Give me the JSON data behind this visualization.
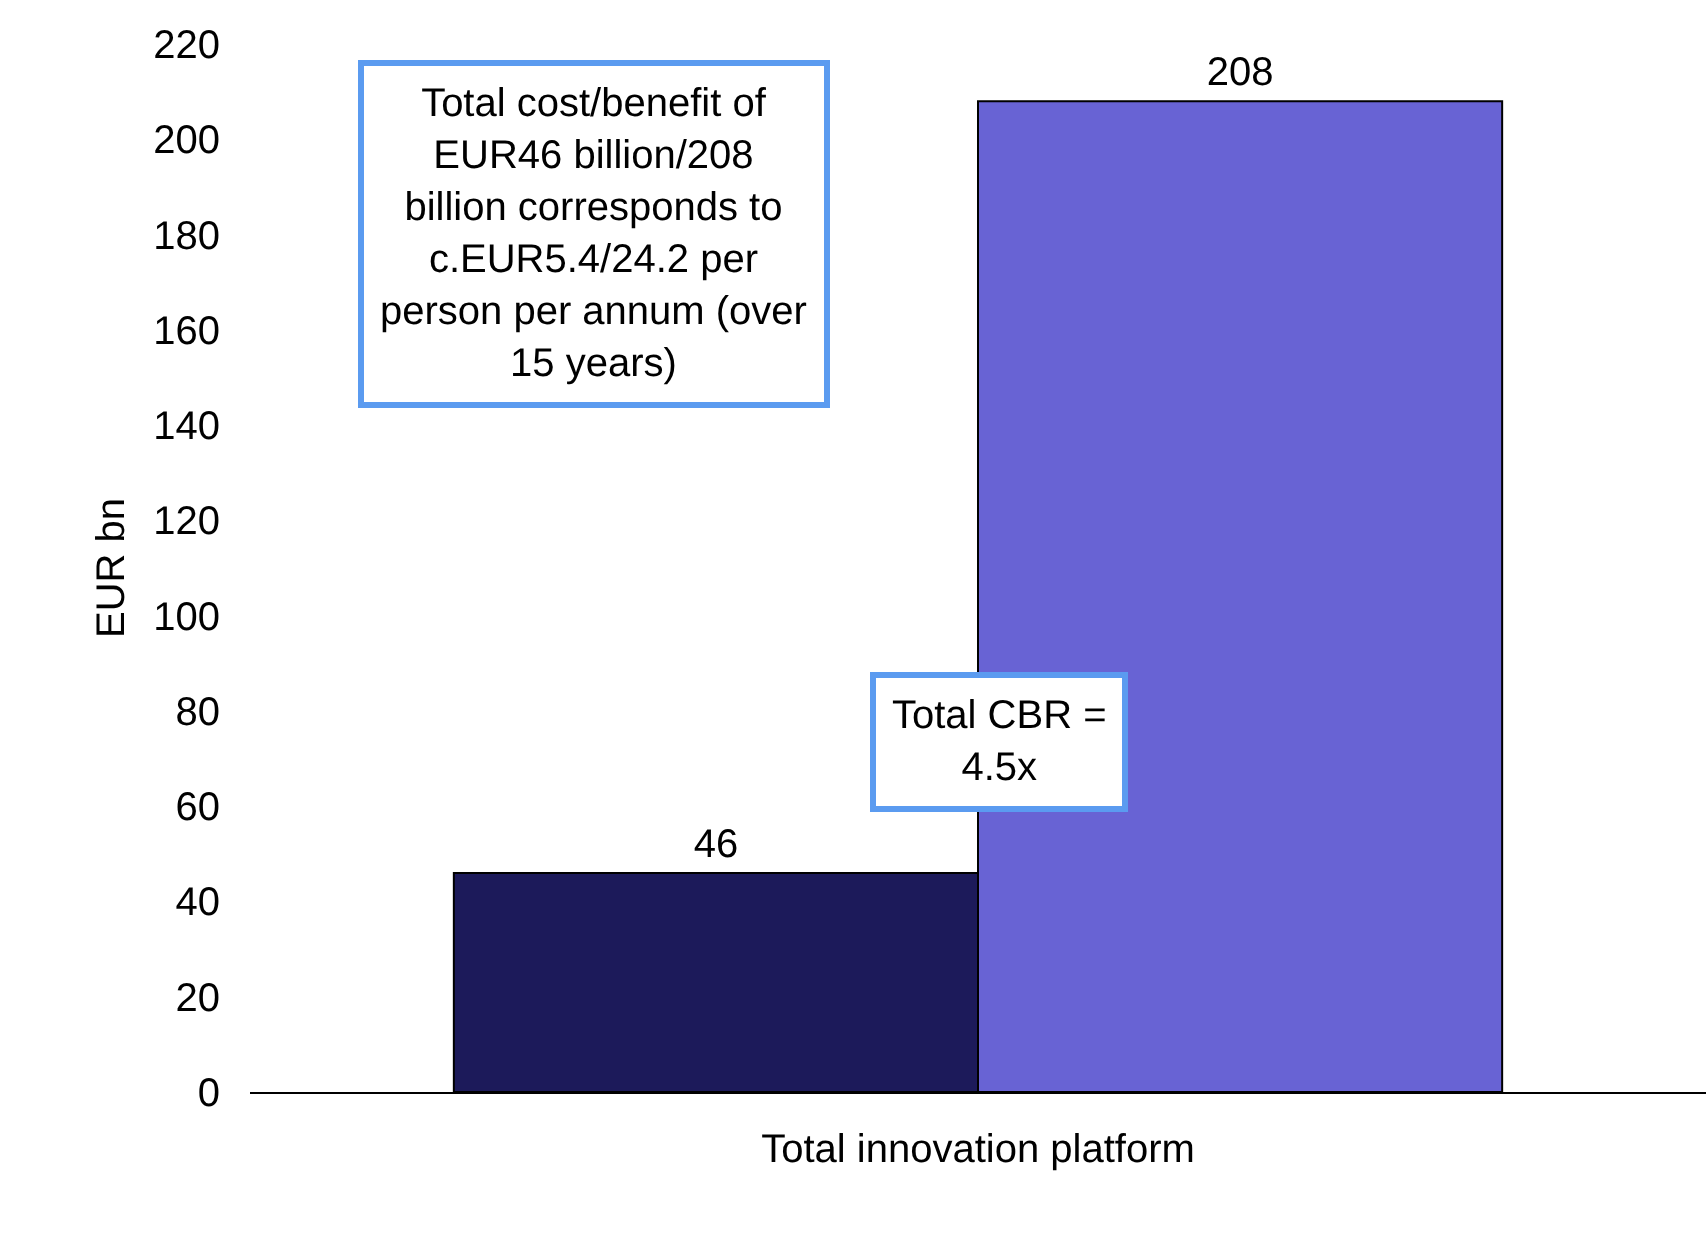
{
  "chart_data": {
    "type": "bar",
    "ylabel": "EUR bn",
    "categories": [
      "Total innovation platform"
    ],
    "series": [
      {
        "color": "#1c1a5a",
        "values": [
          46
        ]
      },
      {
        "color": "#6863d4",
        "values": [
          208
        ]
      }
    ],
    "ylim": [
      0,
      220
    ],
    "yticks": [
      0,
      20,
      40,
      60,
      80,
      100,
      120,
      140,
      160,
      180,
      200,
      220
    ],
    "grid": false,
    "data_labels": true,
    "annotations": [
      "Total cost/benefit of EUR46 billion/208 billion corresponds to c.EUR5.4/24.2 per person per annum (over 15 years)",
      "Total CBR = 4.5x"
    ]
  }
}
